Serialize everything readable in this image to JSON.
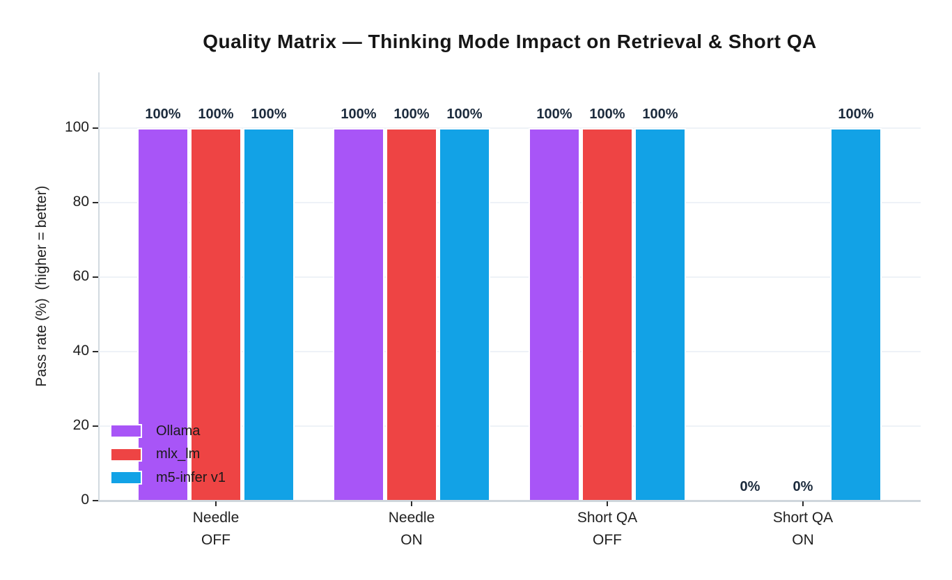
{
  "chart_data": {
    "type": "bar",
    "title": "Quality Matrix — Thinking Mode Impact on Retrieval & Short QA",
    "ylabel": "Pass rate (%)  (higher = better)",
    "xlabel": "",
    "categories": [
      "Needle OFF",
      "Needle ON",
      "Short QA OFF",
      "Short QA ON"
    ],
    "category_lines": [
      [
        "Needle",
        "OFF"
      ],
      [
        "Needle",
        "ON"
      ],
      [
        "Short QA",
        "OFF"
      ],
      [
        "Short QA",
        "ON"
      ]
    ],
    "series": [
      {
        "name": "Ollama",
        "color": "#a855f7",
        "values": [
          100,
          100,
          100,
          0
        ],
        "labels": [
          "100%",
          "100%",
          "100%",
          "0%"
        ]
      },
      {
        "name": "mlx_lm",
        "color": "#ee4444",
        "values": [
          100,
          100,
          100,
          0
        ],
        "labels": [
          "100%",
          "100%",
          "100%",
          "0%"
        ]
      },
      {
        "name": "m5-infer v1",
        "color": "#12a2e6",
        "values": [
          100,
          100,
          100,
          100
        ],
        "labels": [
          "100%",
          "100%",
          "100%",
          "100%"
        ]
      }
    ],
    "yticks": [
      0,
      20,
      40,
      60,
      80,
      100
    ],
    "ylim": [
      0,
      115
    ],
    "grid": "horizontal",
    "legend_position": "lower-left",
    "colors": {
      "value_label": "#1c2b3d",
      "grid_line": "#eef2f7",
      "axis_line": "#cfd6dc",
      "tick_text": "#1f1f1f",
      "title_text": "#161616"
    }
  }
}
